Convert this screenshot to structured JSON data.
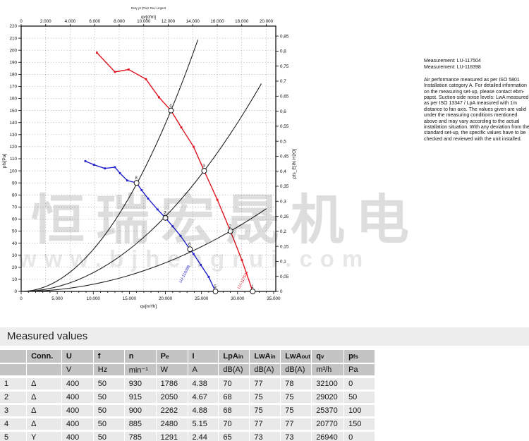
{
  "chart_data": {
    "type": "line",
    "title": "Duty pt (Pa)s Rev-Urgent",
    "axes": {
      "top": {
        "label": "qv[cfm]",
        "ticks": [
          [
            0,
            "0"
          ],
          [
            3398,
            "2.000"
          ],
          [
            6796,
            "4.000"
          ],
          [
            10194,
            "6.000"
          ],
          [
            13592,
            "8.000"
          ],
          [
            16990,
            "10.000"
          ],
          [
            20388,
            "12.000"
          ],
          [
            23786,
            "14.000"
          ],
          [
            27184,
            "16.000"
          ],
          [
            30582,
            "18.000"
          ],
          [
            33980,
            "20.000"
          ]
        ]
      },
      "bottom": {
        "label": "qv[m³/h]",
        "max": 35300,
        "minor_step": 1000,
        "ticks": [
          [
            0,
            "0"
          ],
          [
            5000,
            "5.000"
          ],
          [
            10000,
            "10.000"
          ],
          [
            15000,
            "15.000"
          ],
          [
            20000,
            "20.000"
          ],
          [
            25000,
            "25.000"
          ],
          [
            30000,
            "30.000"
          ],
          [
            35000,
            "35.000"
          ]
        ]
      },
      "left": {
        "label": "pfs[Pa]",
        "min": 0,
        "max": 220,
        "tick_step": 10
      },
      "right": {
        "label": "pfs_E[IN H2O]",
        "ticks": [
          [
            0,
            "0"
          ],
          [
            0.05,
            "0,05"
          ],
          [
            0.1,
            "0,1"
          ],
          [
            0.15,
            "0,15"
          ],
          [
            0.2,
            "0,2"
          ],
          [
            0.25,
            "0,25"
          ],
          [
            0.3,
            "0,3"
          ],
          [
            0.35,
            "0,35"
          ],
          [
            0.4,
            "0,4"
          ],
          [
            0.45,
            "0,45"
          ],
          [
            0.5,
            "0,5"
          ],
          [
            0.55,
            "0,55"
          ],
          [
            0.6,
            "0,6"
          ],
          [
            0.65,
            "0,65"
          ],
          [
            0.7,
            "0,7"
          ],
          [
            0.75,
            "0,75"
          ],
          [
            0.8,
            "0,8"
          ],
          [
            0.85,
            "0,85"
          ]
        ],
        "pa_per_unit": 249.089
      },
      "grid": "dotted"
    },
    "series": [
      {
        "name": "Delta connection (LU-117504)",
        "color": "#e01420",
        "label": "LU-117504",
        "label_at": [
          30900,
          9
        ],
        "label_angle": -62,
        "points": [
          [
            10500,
            198
          ],
          [
            13000,
            182
          ],
          [
            14900,
            184
          ],
          [
            17300,
            176
          ],
          [
            19100,
            161
          ],
          [
            20770,
            150
          ],
          [
            22200,
            136
          ],
          [
            23900,
            120
          ],
          [
            25370,
            100
          ],
          [
            27200,
            76
          ],
          [
            29020,
            50
          ],
          [
            30600,
            26
          ],
          [
            32100,
            0
          ]
        ]
      },
      {
        "name": "Y connection (LU-118398)",
        "color": "#2020cc",
        "label": "LU-118398",
        "label_at": [
          22800,
          14
        ],
        "label_angle": -62,
        "points": [
          [
            8900,
            108
          ],
          [
            10100,
            105
          ],
          [
            11600,
            102
          ],
          [
            13000,
            103
          ],
          [
            13700,
            98
          ],
          [
            14700,
            92
          ],
          [
            16000,
            90
          ],
          [
            16700,
            84
          ],
          [
            17600,
            77
          ],
          [
            18900,
            68
          ],
          [
            20000,
            61
          ],
          [
            21000,
            54
          ],
          [
            22100,
            46
          ],
          [
            23400,
            35
          ],
          [
            23900,
            31
          ],
          [
            24900,
            22
          ],
          [
            26000,
            12
          ],
          [
            26940,
            0
          ]
        ]
      }
    ],
    "system_curves": [
      {
        "k": 3.477e-07,
        "q_max": 24500
      },
      {
        "k": 1.5537e-07,
        "q_max": 33300
      },
      {
        "k": 5.937e-08,
        "q_max": 34000
      }
    ],
    "operating_points": [
      {
        "n": "1",
        "qv": 32100,
        "pfs": 0,
        "series": 0
      },
      {
        "n": "2",
        "qv": 29020,
        "pfs": 50,
        "series": 0
      },
      {
        "n": "3",
        "qv": 25370,
        "pfs": 100,
        "series": 0
      },
      {
        "n": "4",
        "qv": 20770,
        "pfs": 150,
        "series": 0
      },
      {
        "n": "5",
        "qv": 26940,
        "pfs": 0,
        "series": 1
      },
      {
        "n": "6",
        "qv": 23400,
        "pfs": 35,
        "series": 1
      },
      {
        "n": "7",
        "qv": 20000,
        "pfs": 61,
        "series": 1
      },
      {
        "n": "8",
        "qv": 16000,
        "pfs": 90,
        "series": 1
      }
    ]
  },
  "watermark": {
    "line1": "恒瑞宏晟机电",
    "line2": "www.bjhengrui.com"
  },
  "notes": {
    "measurement_1": "Measurement: LU-117504",
    "measurement_2": "Measurement: LU-118398",
    "body": "Air performance measured as per ISO 5801 Installation category A. For detailed information on the measuring set-up, please contact ebm-papst. Suction-side noise levels: LwA measured as per ISO 13347 / LpA measured with 1m distance to fan axis. The values given are valid under the measuring conditions mentioned above and may vary according to the actual installation situation. With any deviation from the standard set-up, the specific values have to be checked and reviewed with the unit installed."
  },
  "table": {
    "section_title": "Measured values",
    "columns": [
      {
        "t": "",
        "sub": "",
        "unit": ""
      },
      {
        "t": "Conn.",
        "sub": "",
        "unit": ""
      },
      {
        "t": "U",
        "sub": "",
        "unit": "V"
      },
      {
        "t": "f",
        "sub": "",
        "unit": "Hz"
      },
      {
        "t": "n",
        "sub": "",
        "unit": "min⁻¹"
      },
      {
        "t": "P",
        "sub": "e",
        "unit": "W"
      },
      {
        "t": "I",
        "sub": "",
        "unit": "A"
      },
      {
        "t": "LpA",
        "sub": "in",
        "unit": "dB(A)"
      },
      {
        "t": "LwA",
        "sub": "in",
        "unit": "dB(A)"
      },
      {
        "t": "LwA",
        "sub": "out",
        "unit": "dB(A)"
      },
      {
        "t": "q",
        "sub": "v",
        "unit": "m³/h"
      },
      {
        "t": "p",
        "sub": "fs",
        "unit": "Pa"
      }
    ],
    "rows": [
      [
        "1",
        "Δ",
        "400",
        "50",
        "930",
        "1786",
        "4.38",
        "70",
        "77",
        "78",
        "32100",
        "0"
      ],
      [
        "2",
        "Δ",
        "400",
        "50",
        "915",
        "2050",
        "4.67",
        "68",
        "75",
        "75",
        "29020",
        "50"
      ],
      [
        "3",
        "Δ",
        "400",
        "50",
        "900",
        "2262",
        "4.88",
        "68",
        "75",
        "75",
        "25370",
        "100"
      ],
      [
        "4",
        "Δ",
        "400",
        "50",
        "885",
        "2480",
        "5.15",
        "70",
        "77",
        "77",
        "20770",
        "150"
      ],
      [
        "5",
        "Y",
        "400",
        "50",
        "785",
        "1291",
        "2.44",
        "65",
        "73",
        "73",
        "26940",
        "0"
      ]
    ]
  },
  "colors": {
    "curve_delta": "#e01420",
    "curve_y": "#2020cc",
    "system_curve": "#222222",
    "table_header_bg": "#c4c4c4",
    "table_row_bg": "#e9e9e9",
    "section_band_bg": "#ededed"
  }
}
